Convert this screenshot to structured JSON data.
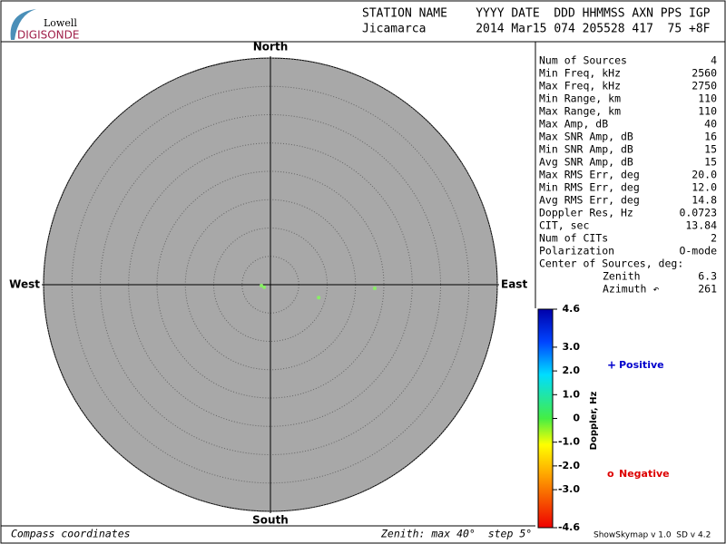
{
  "logo": {
    "top": "Lowell",
    "bottom": "DIGISONDE"
  },
  "header": {
    "line1": "STATION NAME    YYYY DATE  DDD HHMMSS AXN PPS IGP",
    "line2": "Jicamarca       2014 Mar15 074 205528 417  75 +8F"
  },
  "stats": [
    [
      "Num of Sources",
      "4"
    ],
    [
      "Min Freq, kHz",
      "2560"
    ],
    [
      "Max Freq, kHz",
      "2750"
    ],
    [
      "Min Range, km",
      "110"
    ],
    [
      "Max Range, km",
      "110"
    ],
    [
      "Max Amp, dB",
      "40"
    ],
    [
      "Max SNR Amp, dB",
      "16"
    ],
    [
      "Min SNR Amp, dB",
      "15"
    ],
    [
      "Avg SNR Amp, dB",
      "15"
    ],
    [
      "Max RMS Err, deg",
      "20.0"
    ],
    [
      "Min RMS Err, deg",
      "12.0"
    ],
    [
      "Avg RMS Err, deg",
      "14.8"
    ],
    [
      "Doppler Res, Hz",
      "0.0723"
    ],
    [
      "CIT, sec",
      "13.84"
    ],
    [
      "Num of CITs",
      "2"
    ],
    [
      "Polarization",
      "O-mode"
    ]
  ],
  "center": {
    "title": "Center of Sources, deg:",
    "rows": [
      [
        "Zenith",
        "6.3"
      ],
      [
        "Azimuth ↶",
        "261"
      ]
    ]
  },
  "legend": {
    "positive": {
      "symbol": "+",
      "text": "Positive",
      "color": "#0000cc"
    },
    "negative": {
      "symbol": "o",
      "text": "Negative",
      "color": "#dd0000"
    }
  },
  "footer": {
    "left": "Compass coordinates",
    "middle": "Zenith: max 40°  step 5°",
    "right": "ShowSkymap v 1.0  SD v 4.2"
  },
  "chart_data": {
    "type": "polar-scatter",
    "directions": {
      "north": "North",
      "south": "South",
      "east": "East",
      "west": "West"
    },
    "rlim": [
      0,
      40
    ],
    "rings": [
      5,
      10,
      15,
      20,
      25,
      30,
      35,
      40
    ],
    "points": {
      "zenith": [
        1.6,
        1.2,
        8.8,
        18.4
      ],
      "azimuth": [
        264,
        247,
        105,
        92
      ],
      "color": "#88ee66"
    },
    "colorbar": {
      "label": "Doppler, Hz",
      "lim": [
        -4.6,
        4.6
      ],
      "ticks": [
        4.6,
        {
          "value": 3,
          "label": "3.0"
        },
        {
          "value": 2,
          "label": "2.0"
        },
        {
          "value": 1,
          "label": "1.0"
        },
        0,
        {
          "value": -1,
          "label": "-1.0"
        },
        {
          "value": -2,
          "label": "-2.0"
        },
        {
          "value": -3,
          "label": "-3.0"
        },
        -4.6
      ]
    }
  }
}
